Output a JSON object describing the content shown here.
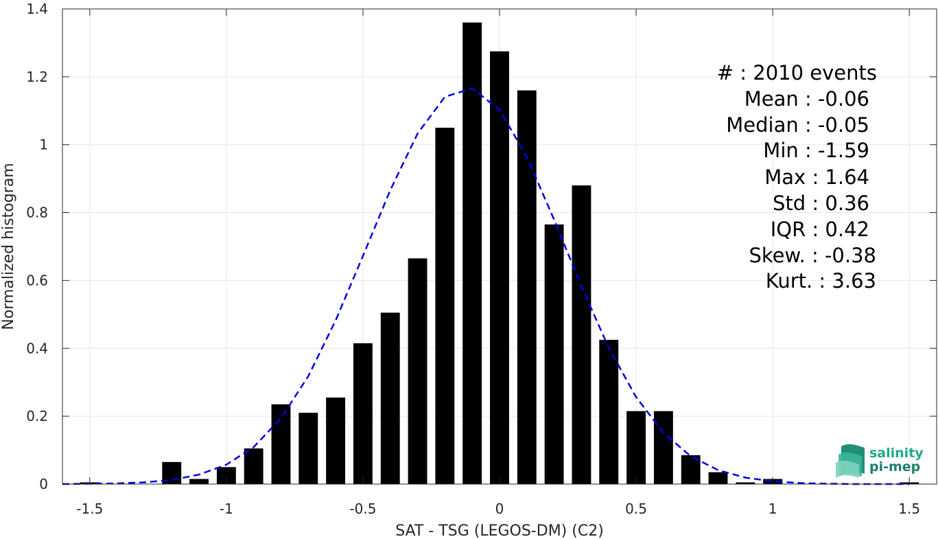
{
  "chart_data": {
    "type": "bar",
    "xlabel": "SAT - TSG (LEGOS-DM) (C2)",
    "ylabel": "Normalized histogram",
    "xlim": [
      -1.6,
      1.6
    ],
    "ylim": [
      0,
      1.4
    ],
    "grid": true,
    "x_ticks": [
      -1.5,
      -1,
      -0.5,
      0,
      0.5,
      1,
      1.5
    ],
    "x_tick_labels": [
      "-1.5",
      "-1",
      "-0.5",
      "0",
      "0.5",
      "1",
      "1.5"
    ],
    "y_ticks": [
      0,
      0.2,
      0.4,
      0.6,
      0.8,
      1,
      1.2,
      1.4
    ],
    "y_tick_labels": [
      "0",
      "0.2",
      "0.4",
      "0.6",
      "0.8",
      "1",
      "1.2",
      "1.4"
    ],
    "bin_width": 0.1,
    "bar_width": 0.07,
    "bin_centers": [
      -1.5,
      -1.2,
      -1.1,
      -1.0,
      -0.9,
      -0.8,
      -0.7,
      -0.6,
      -0.5,
      -0.4,
      -0.3,
      -0.2,
      -0.1,
      0.0,
      0.1,
      0.2,
      0.3,
      0.4,
      0.5,
      0.6,
      0.7,
      0.8,
      0.9,
      1.0,
      1.5
    ],
    "values": [
      0.005,
      0.065,
      0.015,
      0.05,
      0.105,
      0.235,
      0.21,
      0.255,
      0.415,
      0.505,
      0.665,
      1.05,
      1.36,
      1.275,
      1.16,
      0.765,
      0.88,
      0.425,
      0.215,
      0.215,
      0.085,
      0.035,
      0.005,
      0.015,
      0.005
    ],
    "fit": {
      "type": "gaussian",
      "line_style": "dashed",
      "color": "#0000e6",
      "x": [
        -1.6,
        -1.5,
        -1.4,
        -1.3,
        -1.2,
        -1.1,
        -1.0,
        -0.9,
        -0.8,
        -0.7,
        -0.6,
        -0.5,
        -0.4,
        -0.3,
        -0.2,
        -0.1,
        0.0,
        0.1,
        0.2,
        0.3,
        0.4,
        0.5,
        0.6,
        0.7,
        0.8,
        0.9,
        1.0,
        1.1,
        1.2,
        1.3,
        1.4,
        1.5
      ],
      "y": [
        0.0,
        0.001,
        0.002,
        0.005,
        0.012,
        0.028,
        0.057,
        0.109,
        0.194,
        0.318,
        0.482,
        0.672,
        0.866,
        1.033,
        1.141,
        1.166,
        1.103,
        0.964,
        0.779,
        0.582,
        0.401,
        0.256,
        0.151,
        0.082,
        0.041,
        0.019,
        0.008,
        0.003,
        0.001,
        0.0,
        0.0,
        0.0
      ]
    },
    "bar_color": "#000000"
  },
  "stats": {
    "lines": [
      "#  : 2010 events",
      "Mean : -0.06",
      "Median : -0.05",
      "Min : -1.59",
      "Max : 1.64",
      "Std : 0.36",
      "IQR : 0.42",
      "Skew. : -0.38",
      "Kurt. : 3.63"
    ]
  },
  "logo": {
    "line1": "salinity",
    "line2": "pi-mep",
    "color": "#20a88c"
  }
}
